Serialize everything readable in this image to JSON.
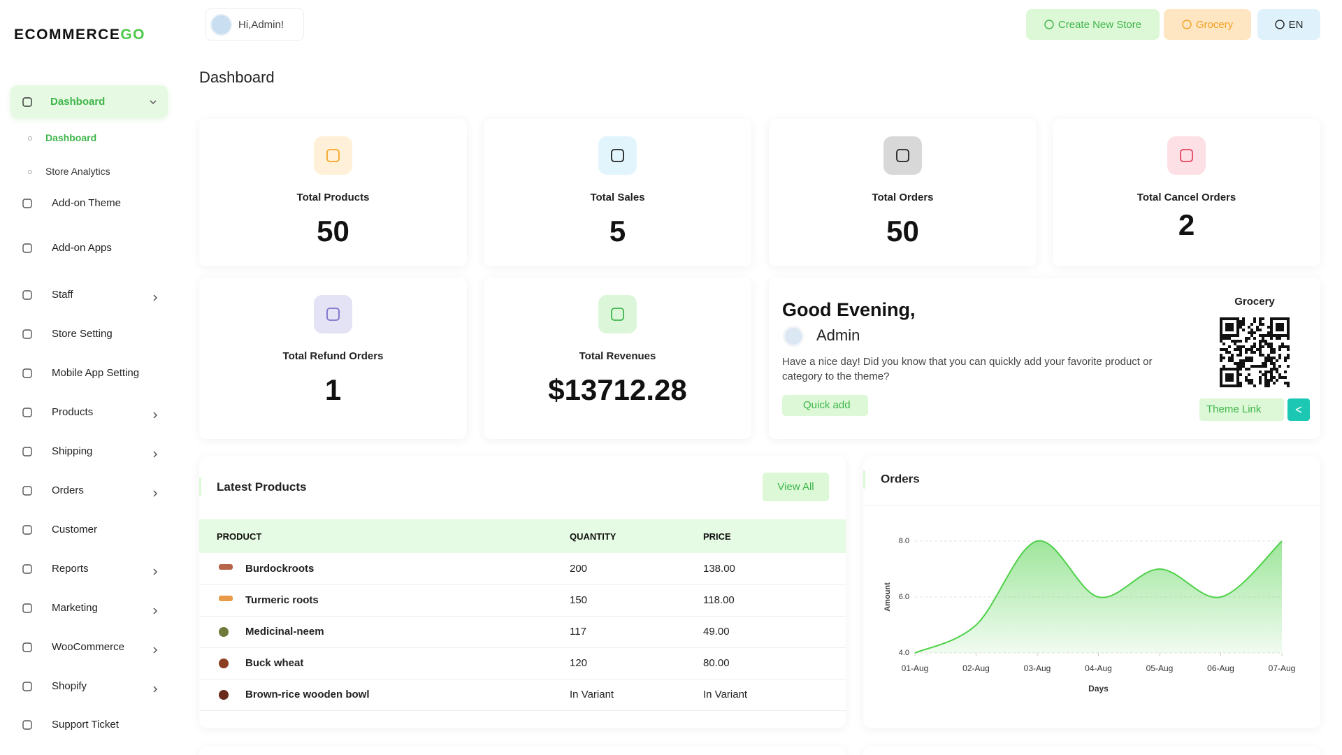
{
  "sidebar": {
    "logo": "ECOMMERCE",
    "logo_accent": "GO",
    "menu": [
      {
        "label": "Dashboard",
        "arrow": true
      },
      {
        "label": "Add-on Theme",
        "arrow": false
      },
      {
        "label": "Add-on Apps",
        "arrow": false
      },
      {
        "label": "Staff",
        "arrow": true
      },
      {
        "label": "Store Setting",
        "arrow": false
      },
      {
        "label": "Mobile App Setting",
        "arrow": false
      },
      {
        "label": "Products",
        "arrow": true
      },
      {
        "label": "Shipping",
        "arrow": true
      },
      {
        "label": "Orders",
        "arrow": true
      },
      {
        "label": "Customer",
        "arrow": false
      },
      {
        "label": "Reports",
        "arrow": true
      },
      {
        "label": "Marketing",
        "arrow": true
      },
      {
        "label": "WooCommerce",
        "arrow": true
      },
      {
        "label": "Shopify",
        "arrow": true
      },
      {
        "label": "Support Ticket",
        "arrow": false
      }
    ],
    "submenu": [
      "Dashboard",
      "Store Analytics"
    ]
  },
  "header": {
    "greeting": "Hi,Admin!",
    "create_store": "Create New Store",
    "store": "Grocery",
    "language": "EN"
  },
  "page_title": "Dashboard",
  "stats": [
    {
      "label": "Total Products",
      "value": 50,
      "color": "#fff1d9",
      "icon": "#f5a623"
    },
    {
      "label": "Total Sales",
      "value": 5,
      "color": "#e2f5fc",
      "icon": "#222222"
    },
    {
      "label": "Total Orders",
      "value": 50,
      "color": "#d8d8d8",
      "icon": "#222222"
    },
    {
      "label": "Total Cancel Orders",
      "value": 2,
      "color": "#fde0e5",
      "icon": "#e8415f"
    },
    {
      "label": "Total Refund Orders",
      "value": 1,
      "color": "#e4e2f5",
      "icon": "#7b6fc9"
    },
    {
      "label": "Total Revenues",
      "value": "$13712.28",
      "color": "#dcf6da",
      "icon": "#3fb54a"
    }
  ],
  "welcome": {
    "title": "Good Evening,",
    "name": "Admin",
    "message": "Have a nice day! Did you know that you can quickly add your favorite product or category to the theme?",
    "quick_add": "Quick add",
    "store_name": "Grocery",
    "theme_link": "Theme Link"
  },
  "latest_products": {
    "title": "Latest Products",
    "view_all": "View All",
    "columns": [
      "PRODUCT",
      "QUANTITY",
      "PRICE"
    ],
    "rows": [
      [
        "Burdockroots",
        "200",
        "138.00"
      ],
      [
        "Turmeric roots",
        "150",
        "118.00"
      ],
      [
        "Medicinal-neem",
        "117",
        "49.00"
      ],
      [
        "Buck wheat",
        "120",
        "80.00"
      ],
      [
        "Brown-rice wooden bowl",
        "In Variant",
        "In Variant"
      ]
    ]
  },
  "chart_data": {
    "type": "line",
    "title": "Orders",
    "xlabel": "Days",
    "ylabel": "Amount",
    "categories": [
      "01-Aug",
      "02-Aug",
      "03-Aug",
      "04-Aug",
      "05-Aug",
      "06-Aug",
      "07-Aug"
    ],
    "values": [
      4.0,
      5.0,
      8.0,
      6.0,
      7.0,
      6.0,
      8.0
    ],
    "color": "#4fd14a",
    "ylim": [
      4,
      8
    ],
    "yticks": [
      {
        "value": 4,
        "label": "4.0"
      },
      {
        "value": 6,
        "label": "6.0"
      },
      {
        "value": 8,
        "label": "8.0"
      }
    ],
    "grid": true
  }
}
